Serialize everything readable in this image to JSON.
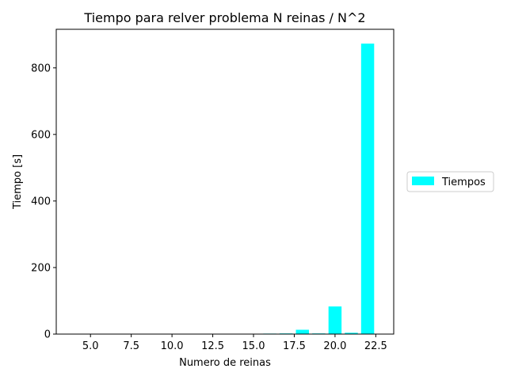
{
  "chart_data": {
    "type": "bar",
    "title": "Tiempo para relver problema N reinas / N^2",
    "xlabel": "Numero de reinas",
    "ylabel": "Tiempo [s]",
    "x": [
      4,
      5,
      6,
      7,
      8,
      9,
      10,
      11,
      12,
      13,
      14,
      15,
      16,
      17,
      18,
      19,
      20,
      21,
      22
    ],
    "series": [
      {
        "name": "Tiempos",
        "color": "#00ffff",
        "values": [
          0,
          0,
          0,
          0,
          0,
          0,
          0,
          0,
          0.1,
          0.1,
          0.3,
          0.3,
          1.5,
          2,
          13,
          2,
          83,
          4,
          873
        ]
      }
    ],
    "xlim": [
      2.9,
      23.6
    ],
    "ylim": [
      0,
      916
    ],
    "xticks": [
      5.0,
      7.5,
      10.0,
      12.5,
      15.0,
      17.5,
      20.0,
      22.5
    ],
    "xtick_labels": [
      "5.0",
      "7.5",
      "10.0",
      "12.5",
      "15.0",
      "17.5",
      "20.0",
      "22.5"
    ],
    "yticks": [
      0,
      200,
      400,
      600,
      800
    ],
    "ytick_labels": [
      "0",
      "200",
      "400",
      "600",
      "800"
    ],
    "bar_width": 0.8,
    "grid": false,
    "legend": "outside-right"
  }
}
